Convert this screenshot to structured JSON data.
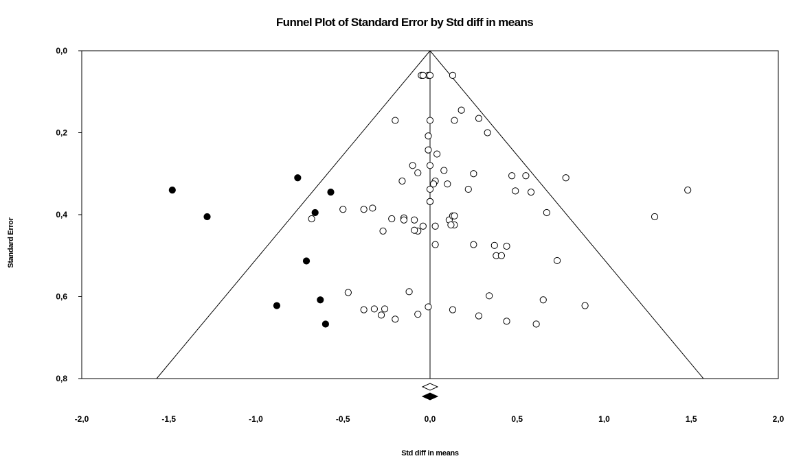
{
  "chart_data": {
    "type": "scatter",
    "title": "Funnel Plot of Standard Error by Std diff in means",
    "xlabel": "Std diff in means",
    "ylabel": "Standard Error",
    "xlim": [
      -2.0,
      2.0
    ],
    "ylim": [
      0.0,
      0.8
    ],
    "y_inverted": true,
    "x_ticks": [
      "-2,0",
      "-1,5",
      "-1,0",
      "-0,5",
      "0,0",
      "0,5",
      "1,0",
      "1,5",
      "2,0"
    ],
    "y_ticks": [
      "0,0",
      "0,2",
      "0,4",
      "0,6",
      "0,8"
    ],
    "grid": false,
    "funnel": {
      "center": 0.0,
      "apex_se": 0.0,
      "base_se": 0.8,
      "base_left": -1.57,
      "base_right": 1.57
    },
    "series": [
      {
        "marker": "open-circle",
        "points": [
          [
            -0.01,
            0.06
          ],
          [
            0.0,
            0.06
          ],
          [
            -0.05,
            0.06
          ],
          [
            0.13,
            0.06
          ],
          [
            -0.04,
            0.06
          ],
          [
            0.18,
            0.145
          ],
          [
            0.28,
            0.165
          ],
          [
            -0.2,
            0.17
          ],
          [
            0.0,
            0.17
          ],
          [
            0.14,
            0.17
          ],
          [
            0.33,
            0.2
          ],
          [
            -0.01,
            0.208
          ],
          [
            -0.01,
            0.242
          ],
          [
            0.04,
            0.252
          ],
          [
            -0.1,
            0.28
          ],
          [
            0.0,
            0.28
          ],
          [
            0.08,
            0.292
          ],
          [
            -0.07,
            0.298
          ],
          [
            0.25,
            0.3
          ],
          [
            0.47,
            0.305
          ],
          [
            0.55,
            0.305
          ],
          [
            0.78,
            0.31
          ],
          [
            -0.16,
            0.318
          ],
          [
            0.03,
            0.318
          ],
          [
            0.02,
            0.325
          ],
          [
            0.1,
            0.325
          ],
          [
            0.0,
            0.338
          ],
          [
            0.22,
            0.338
          ],
          [
            0.49,
            0.342
          ],
          [
            0.58,
            0.345
          ],
          [
            1.48,
            0.34
          ],
          [
            0.0,
            0.368
          ],
          [
            0.0,
            0.368
          ],
          [
            -0.5,
            0.387
          ],
          [
            -0.38,
            0.387
          ],
          [
            -0.33,
            0.384
          ],
          [
            0.67,
            0.395
          ],
          [
            -0.15,
            0.408
          ],
          [
            -0.15,
            0.413
          ],
          [
            -0.22,
            0.41
          ],
          [
            -0.68,
            0.41
          ],
          [
            -0.09,
            0.413
          ],
          [
            0.11,
            0.413
          ],
          [
            0.13,
            0.403
          ],
          [
            0.14,
            0.403
          ],
          [
            1.29,
            0.405
          ],
          [
            0.14,
            0.425
          ],
          [
            0.12,
            0.425
          ],
          [
            -0.04,
            0.428
          ],
          [
            0.03,
            0.428
          ],
          [
            -0.27,
            0.44
          ],
          [
            -0.07,
            0.44
          ],
          [
            -0.09,
            0.438
          ],
          [
            0.03,
            0.473
          ],
          [
            0.25,
            0.473
          ],
          [
            0.37,
            0.475
          ],
          [
            0.44,
            0.477
          ],
          [
            0.38,
            0.5
          ],
          [
            0.41,
            0.5
          ],
          [
            0.73,
            0.512
          ],
          [
            -0.47,
            0.59
          ],
          [
            -0.12,
            0.588
          ],
          [
            0.34,
            0.598
          ],
          [
            0.65,
            0.608
          ],
          [
            0.89,
            0.622
          ],
          [
            -0.01,
            0.625
          ],
          [
            -0.38,
            0.632
          ],
          [
            -0.32,
            0.63
          ],
          [
            -0.26,
            0.63
          ],
          [
            0.13,
            0.632
          ],
          [
            -0.28,
            0.645
          ],
          [
            -0.07,
            0.643
          ],
          [
            0.28,
            0.647
          ],
          [
            -0.2,
            0.655
          ],
          [
            0.44,
            0.66
          ],
          [
            0.61,
            0.667
          ]
        ]
      },
      {
        "marker": "filled-circle",
        "points": [
          [
            -1.48,
            0.34
          ],
          [
            -1.28,
            0.405
          ],
          [
            -0.76,
            0.31
          ],
          [
            -0.57,
            0.345
          ],
          [
            -0.66,
            0.395
          ],
          [
            -0.71,
            0.513
          ],
          [
            -0.88,
            0.622
          ],
          [
            -0.63,
            0.608
          ],
          [
            -0.6,
            0.667
          ]
        ]
      }
    ],
    "summary_markers": [
      {
        "marker": "open-diamond",
        "x": 0.0
      },
      {
        "marker": "filled-diamond",
        "x": 0.0
      }
    ]
  }
}
